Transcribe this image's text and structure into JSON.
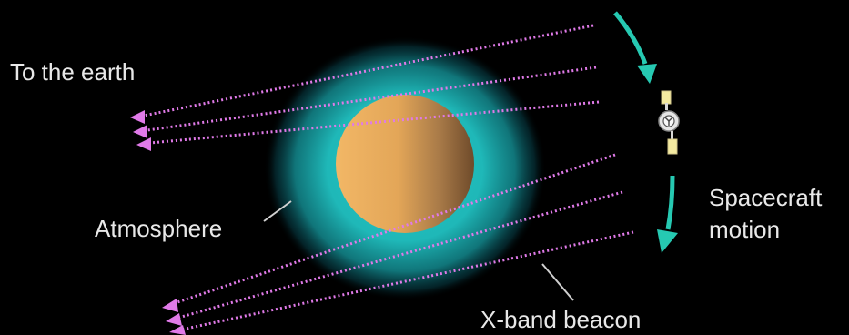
{
  "labels": {
    "to_earth": "To the earth",
    "atmosphere": "Atmosphere",
    "spacecraft_line1": "Spacecraft",
    "spacecraft_line2": "motion",
    "beacon": "X-band beacon"
  },
  "colors": {
    "background": "#000000",
    "atmosphere": "#22c3c3",
    "planet_light": "#f2b766",
    "planet_dark": "#6e4a2a",
    "beam": "#e07ae8",
    "motion_arrow": "#26c9b2",
    "label_text": "#e8e8e8",
    "leader_line": "#d0d0d0"
  },
  "icons": {
    "spacecraft": "spacecraft-icon",
    "motion_arrow": "curved-arrow-icon",
    "beam_arrowhead": "triangle-arrowhead-icon"
  }
}
